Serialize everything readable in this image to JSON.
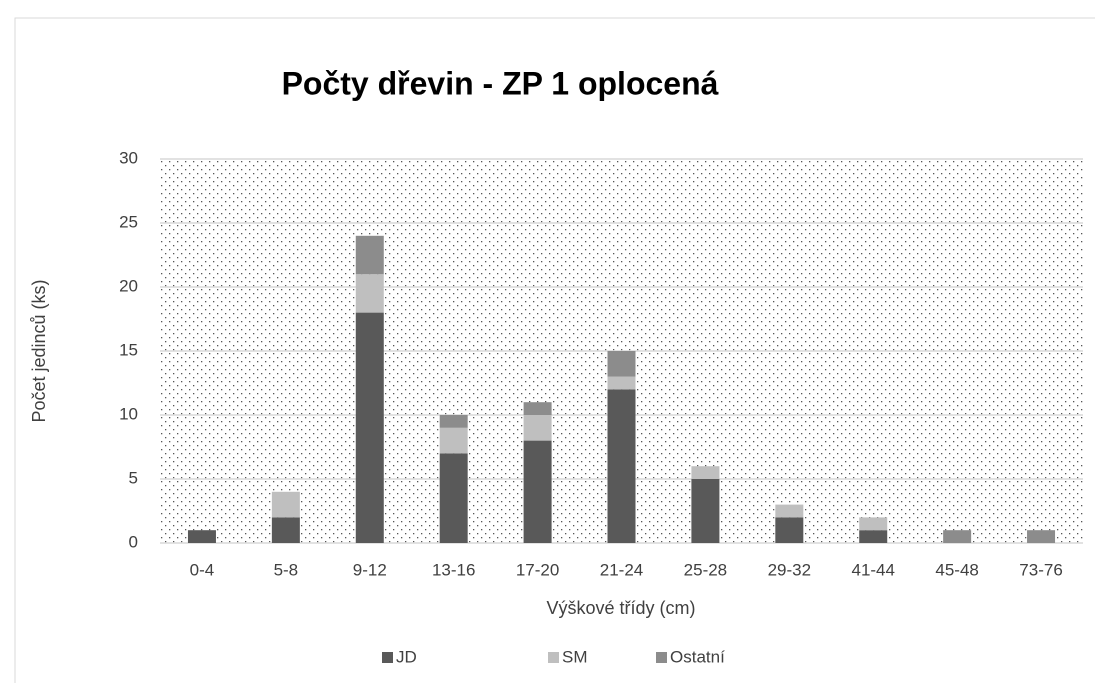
{
  "chart_data": {
    "type": "bar",
    "stacked": true,
    "title": "Počty dřevin - ZP 1 oplocená",
    "x_label": "Výškové třídy (cm)",
    "y_label": "Počet jedinců (ks)",
    "categories": [
      "0-4",
      "5-8",
      "9-12",
      "13-16",
      "17-20",
      "21-24",
      "25-28",
      "29-32",
      "41-44",
      "45-48",
      "73-76"
    ],
    "series": [
      {
        "name": "JD",
        "color": "#595959",
        "values": [
          1,
          2,
          18,
          7,
          8,
          12,
          5,
          2,
          1,
          0,
          0
        ]
      },
      {
        "name": "SM",
        "color": "#bfbfbf",
        "values": [
          0,
          2,
          3,
          2,
          2,
          1,
          1,
          1,
          1,
          0,
          0
        ]
      },
      {
        "name": "Ostatní",
        "color": "#8c8c8c",
        "values": [
          0,
          0,
          3,
          1,
          1,
          2,
          0,
          0,
          0,
          1,
          1
        ]
      }
    ],
    "ylim": [
      0,
      30
    ],
    "yticks": [
      0,
      5,
      10,
      15,
      20,
      25,
      30
    ],
    "grid": true,
    "legend": "bottom"
  }
}
